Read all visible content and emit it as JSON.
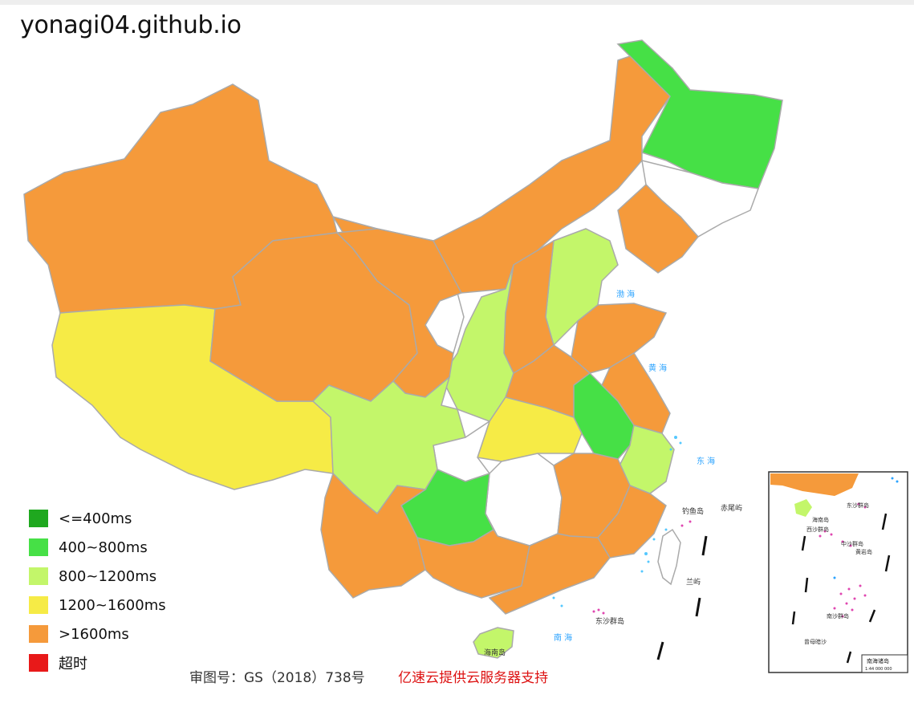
{
  "title": "yonagi04.github.io",
  "legend": [
    {
      "label": "<=400ms",
      "color": "#1fa81f"
    },
    {
      "label": "400~800ms",
      "color": "#46e046"
    },
    {
      "label": "800~1200ms",
      "color": "#c3f66a"
    },
    {
      "label": "1200~1600ms",
      "color": "#f6eb46"
    },
    {
      "label": ">1600ms",
      "color": "#f59a3b"
    },
    {
      "label": "超时",
      "color": "#e81919"
    }
  ],
  "map_labels": {
    "bohai": "渤 海",
    "huanghai": "黄 海",
    "donghai": "东 海",
    "nanhai": "南 海",
    "diaoyudao": "钓鱼岛",
    "chiweiyu": "赤尾屿",
    "lanyu": "兰屿",
    "dongsha": "东沙群岛",
    "hainan": "海南岛"
  },
  "inset": {
    "title": "南海诸岛",
    "scale": "1:44 000 000",
    "labels": [
      "东沙群岛",
      "海南岛",
      "西沙群岛",
      "中沙群岛",
      "黄岩岛",
      "南沙群岛",
      "曾母暗沙"
    ]
  },
  "footer": {
    "approval": "审图号：GS（2018）738号",
    "sponsor": "亿速云提供云服务器支持"
  }
}
